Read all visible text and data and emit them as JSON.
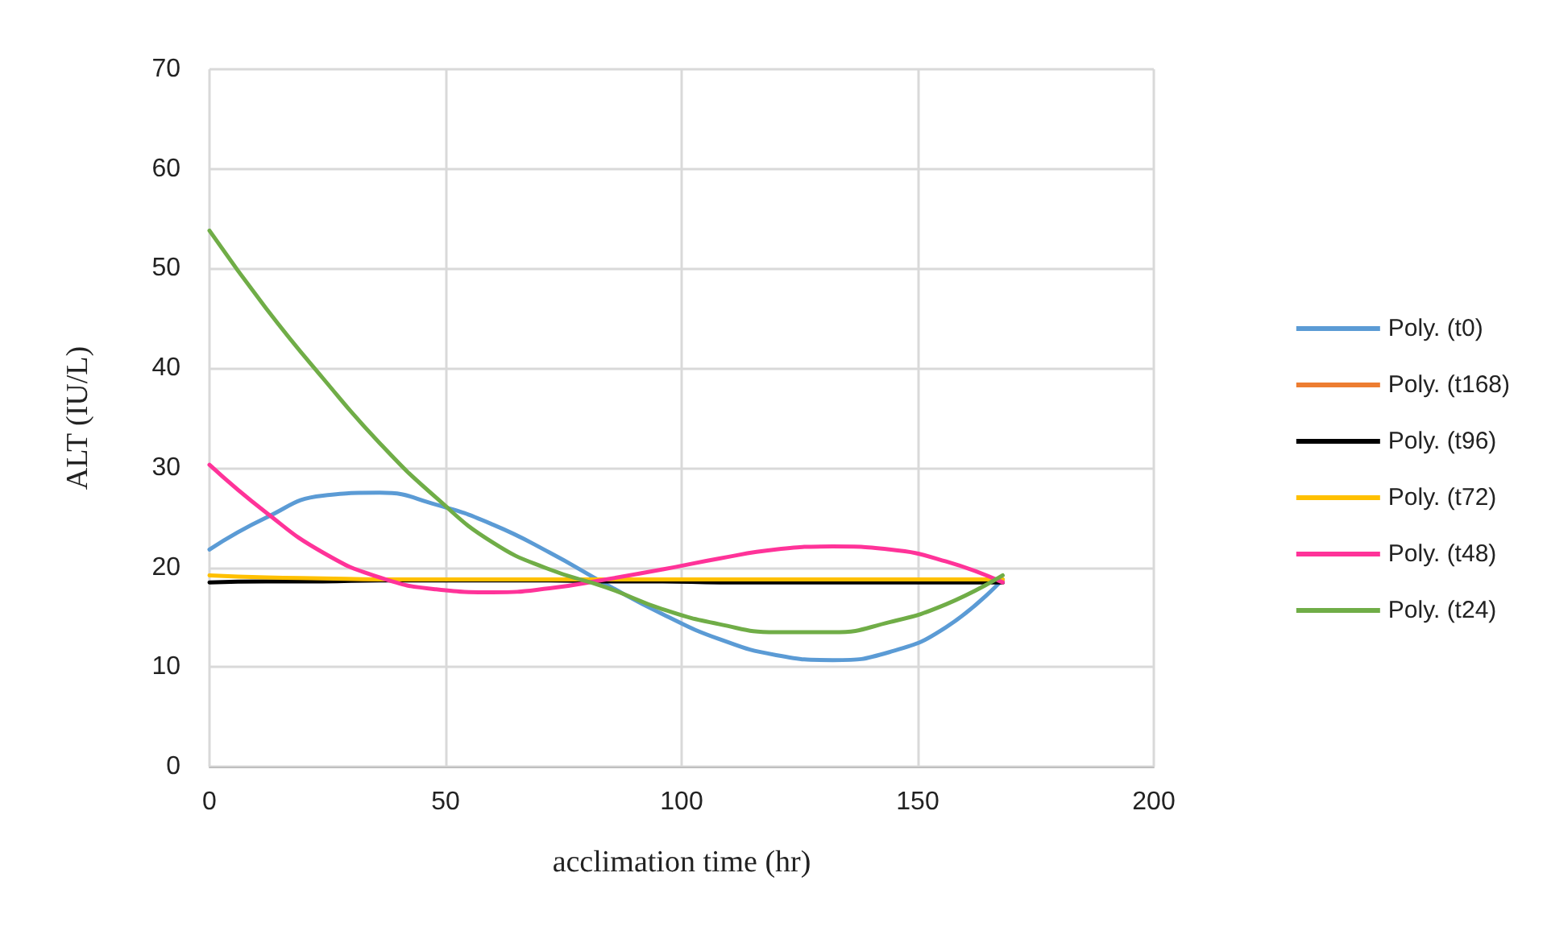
{
  "chart_data": {
    "type": "line",
    "xlabel": "acclimation time (hr)",
    "ylabel": "ALT (IU/L)",
    "xlim": [
      0,
      200
    ],
    "xticks": [
      0,
      50,
      100,
      150,
      200
    ],
    "ylim": [
      0,
      70
    ],
    "yticks": [
      0,
      10,
      20,
      30,
      40,
      50,
      60,
      70
    ],
    "grid": true,
    "legend": "right",
    "marker": "none",
    "line_style": "solid",
    "x": [
      0,
      12,
      24,
      36,
      48,
      60,
      72,
      84,
      96,
      108,
      120,
      132,
      144,
      156,
      168
    ],
    "series": [
      {
        "name": "Poly. (t0)",
        "color": "#5b9bd5",
        "values": [
          21.8,
          25,
          27.2,
          27.5,
          26.3,
          24.3,
          21.5,
          18.3,
          15.3,
          12.8,
          11.2,
          10.7,
          11.5,
          14,
          18.8
        ]
      },
      {
        "name": "Poly. (t168)",
        "color": "#ed7d31",
        "values": [
          null,
          null,
          null,
          null,
          null,
          null,
          null,
          null,
          null,
          null,
          null,
          null,
          null,
          null,
          null
        ]
      },
      {
        "name": "Poly. (t96)",
        "color": "#000000",
        "values": [
          18.5,
          18.6,
          18.6,
          18.7,
          18.7,
          18.7,
          18.7,
          18.6,
          18.6,
          18.5,
          18.5,
          18.5,
          18.5,
          18.5,
          18.5
        ]
      },
      {
        "name": "Poly. (t72)",
        "color": "#ffc000",
        "values": [
          19.2,
          19,
          18.9,
          18.8,
          18.8,
          18.8,
          18.8,
          18.8,
          18.8,
          18.8,
          18.8,
          18.8,
          18.8,
          18.8,
          18.8
        ]
      },
      {
        "name": "Poly. (t48)",
        "color": "#ff3399",
        "values": [
          30.3,
          25.5,
          21.5,
          19,
          17.8,
          17.5,
          17.9,
          18.8,
          19.8,
          20.9,
          21.8,
          22.1,
          21.8,
          20.6,
          18.5
        ]
      },
      {
        "name": "Poly. (t24)",
        "color": "#70ad47",
        "values": [
          53.8,
          46,
          39,
          32.5,
          27,
          22.5,
          19.8,
          18,
          15.8,
          14.3,
          13.5,
          13.5,
          14.5,
          16.3,
          19.2
        ]
      }
    ]
  }
}
